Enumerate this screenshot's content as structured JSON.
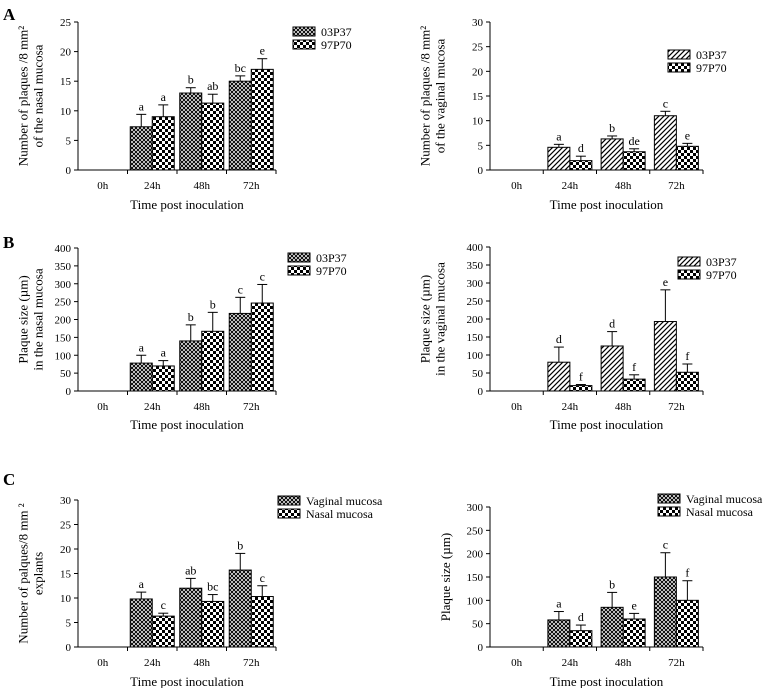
{
  "panel_letters": [
    "A",
    "B",
    "C"
  ],
  "chart_data": [
    {
      "type": "bar",
      "id": "A-left",
      "panel": "A",
      "ylabel_lines": [
        "Number of plaques /8 mm²",
        "of the nasal mucosa"
      ],
      "xlabel": "Time post inoculation",
      "categories": [
        "0h",
        "24h",
        "48h",
        "72h"
      ],
      "ylim": [
        0,
        25
      ],
      "yticks": [
        0,
        5,
        10,
        15,
        20,
        25
      ],
      "legend_position": "top-right",
      "series": [
        {
          "name": "03P37",
          "pattern": "cross",
          "values": [
            0,
            7.3,
            13,
            15
          ],
          "errors": [
            0,
            2.1,
            0.9,
            0.9
          ],
          "labels": [
            "",
            "a",
            "b",
            "bc"
          ]
        },
        {
          "name": "97P70",
          "pattern": "check",
          "values": [
            0,
            9,
            11.3,
            17
          ],
          "errors": [
            0,
            2.0,
            1.5,
            1.8
          ],
          "labels": [
            "",
            "a",
            "ab",
            "e"
          ]
        }
      ]
    },
    {
      "type": "bar",
      "id": "A-right",
      "panel": "A",
      "ylabel_lines": [
        "Number of plaques /8 mm²",
        "of the vaginal mucosa"
      ],
      "xlabel": "Time post inoculation",
      "categories": [
        "0h",
        "24h",
        "48h",
        "72h"
      ],
      "ylim": [
        0,
        30
      ],
      "yticks": [
        0,
        5,
        10,
        15,
        20,
        25,
        30
      ],
      "legend_position": "top-right",
      "series": [
        {
          "name": "03P37",
          "pattern": "diag",
          "values": [
            0,
            4.6,
            6.3,
            11
          ],
          "errors": [
            0,
            0.6,
            0.6,
            0.9
          ],
          "labels": [
            "",
            "a",
            "b",
            "c"
          ]
        },
        {
          "name": "97P70",
          "pattern": "check",
          "values": [
            0,
            1.9,
            3.7,
            4.8
          ],
          "errors": [
            0,
            0.9,
            0.6,
            0.6
          ],
          "labels": [
            "",
            "d",
            "de",
            "e"
          ]
        }
      ]
    },
    {
      "type": "bar",
      "id": "B-left",
      "panel": "B",
      "ylabel_lines": [
        "Plaque size (µm)",
        "in the nasal mucosa"
      ],
      "xlabel": "Time post inoculation",
      "categories": [
        "0h",
        "24h",
        "48h",
        "72h"
      ],
      "ylim": [
        0,
        400
      ],
      "yticks": [
        0,
        50,
        100,
        150,
        200,
        250,
        300,
        350,
        400
      ],
      "legend_position": "top-right",
      "series": [
        {
          "name": "03P37",
          "pattern": "cross",
          "values": [
            0,
            78,
            140,
            217
          ],
          "errors": [
            0,
            22,
            45,
            45
          ],
          "labels": [
            "",
            "a",
            "b",
            "c"
          ]
        },
        {
          "name": "97P70",
          "pattern": "check",
          "values": [
            0,
            70,
            167,
            246
          ],
          "errors": [
            0,
            15,
            53,
            52
          ],
          "labels": [
            "",
            "a",
            "b",
            "c"
          ]
        }
      ]
    },
    {
      "type": "bar",
      "id": "B-right",
      "panel": "B",
      "ylabel_lines": [
        "Plaque size (µm)",
        "in the vaginal mucosa"
      ],
      "xlabel": "Time post inoculation",
      "categories": [
        "0h",
        "24h",
        "48h",
        "72h"
      ],
      "ylim": [
        0,
        400
      ],
      "yticks": [
        0,
        50,
        100,
        150,
        200,
        250,
        300,
        350,
        400
      ],
      "legend_position": "top-right",
      "series": [
        {
          "name": "03P37",
          "pattern": "diag",
          "values": [
            0,
            80,
            125,
            193
          ],
          "errors": [
            0,
            42,
            40,
            88
          ],
          "labels": [
            "",
            "d",
            "d",
            "e"
          ]
        },
        {
          "name": "97P70",
          "pattern": "check",
          "values": [
            0,
            15,
            33,
            52
          ],
          "errors": [
            0,
            3,
            12,
            23
          ],
          "labels": [
            "",
            "f",
            "f",
            "f"
          ]
        }
      ]
    },
    {
      "type": "bar",
      "id": "C-left",
      "panel": "C",
      "ylabel_lines": [
        "Number of palques/8 mm ²",
        "explants"
      ],
      "xlabel": "Time post inoculation",
      "categories": [
        "0h",
        "24h",
        "48h",
        "72h"
      ],
      "ylim": [
        0,
        30
      ],
      "yticks": [
        0,
        5,
        10,
        15,
        20,
        25,
        30
      ],
      "legend_position": "top-right",
      "series": [
        {
          "name": "Vaginal mucosa",
          "pattern": "cross",
          "values": [
            0,
            9.8,
            12,
            15.7
          ],
          "errors": [
            0,
            1.4,
            2.0,
            3.4
          ],
          "labels": [
            "",
            "a",
            "ab",
            "b"
          ]
        },
        {
          "name": "Nasal mucosa",
          "pattern": "check",
          "values": [
            0,
            6.3,
            9.3,
            10.3
          ],
          "errors": [
            0,
            0.6,
            1.4,
            2.2
          ],
          "labels": [
            "",
            "c",
            "bc",
            "c"
          ]
        }
      ]
    },
    {
      "type": "bar",
      "id": "C-right",
      "panel": "C",
      "ylabel_lines": [
        "Plaque size (µm)"
      ],
      "xlabel": "Time post inoculation",
      "categories": [
        "0h",
        "24h",
        "48h",
        "72h"
      ],
      "ylim": [
        0,
        300
      ],
      "yticks": [
        0,
        50,
        100,
        150,
        200,
        250,
        300
      ],
      "legend_position": "top-right",
      "series": [
        {
          "name": "Vaginal mucosa",
          "pattern": "cross",
          "values": [
            0,
            58,
            85,
            150
          ],
          "errors": [
            0,
            18,
            32,
            52
          ],
          "labels": [
            "",
            "a",
            "b",
            "c"
          ]
        },
        {
          "name": "Nasal mucosa",
          "pattern": "check",
          "values": [
            0,
            35,
            60,
            100
          ],
          "errors": [
            0,
            12,
            12,
            42
          ],
          "labels": [
            "",
            "d",
            "e",
            "f"
          ]
        }
      ]
    }
  ]
}
